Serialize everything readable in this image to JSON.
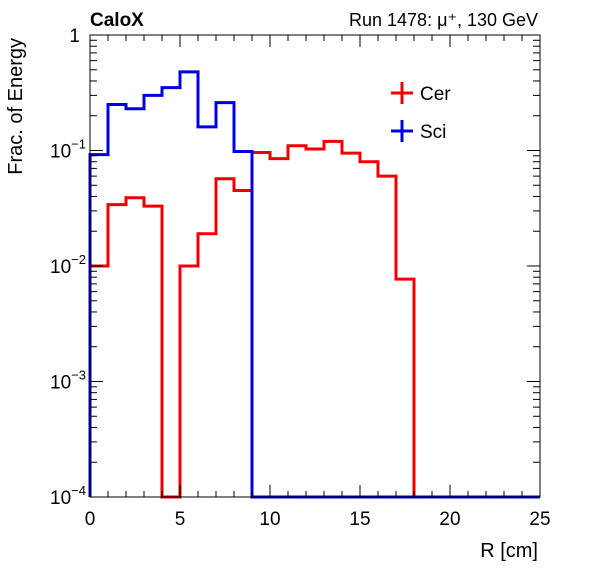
{
  "chart_data": {
    "type": "line",
    "experiment_label": "CaloX",
    "run_label": "Run 1478:   μ⁺, 130 GeV",
    "xlabel": "R [cm]",
    "ylabel": "Frac. of Energy",
    "xlim": [
      0,
      25
    ],
    "ylim": [
      0.0001,
      1
    ],
    "y_scale": "log",
    "x_ticks": [
      0,
      5,
      10,
      15,
      20,
      25
    ],
    "x_tick_labels": [
      "0",
      "5",
      "10",
      "15",
      "20",
      "25"
    ],
    "y_tick_labels": [
      {
        "value": 1,
        "base": "1",
        "exp": ""
      },
      {
        "value": 0.1,
        "base": "10",
        "exp": "−1"
      },
      {
        "value": 0.01,
        "base": "10",
        "exp": "−2"
      },
      {
        "value": 0.001,
        "base": "10",
        "exp": "−3"
      },
      {
        "value": 0.0001,
        "base": "10",
        "exp": "−4"
      }
    ],
    "grid": false,
    "legend_placement": "top-right",
    "bin_edges": [
      0,
      1,
      2,
      3,
      4,
      5,
      6,
      7,
      8,
      9,
      10,
      11,
      12,
      13,
      14,
      15,
      16,
      17,
      18,
      19,
      20,
      21,
      22,
      23,
      24,
      25
    ],
    "series": [
      {
        "name": "Cer",
        "color": "#ee0000",
        "values": [
          0.01,
          0.034,
          0.039,
          0.033,
          0.0001,
          0.01,
          0.019,
          0.057,
          0.045,
          0.096,
          0.085,
          0.11,
          0.103,
          0.12,
          0.095,
          0.08,
          0.06,
          0.0077,
          0.0001,
          0.0001,
          0.0001,
          0.0001,
          0.0001,
          0.0001,
          0.0001
        ]
      },
      {
        "name": "Sci",
        "color": "#0000dd",
        "values": [
          0.092,
          0.25,
          0.23,
          0.3,
          0.35,
          0.48,
          0.16,
          0.26,
          0.098,
          0.0001,
          0.0001,
          0.0001,
          0.0001,
          0.0001,
          0.0001,
          0.0001,
          0.0001,
          0.0001,
          0.0001,
          0.0001,
          0.0001,
          0.0001,
          0.0001,
          0.0001,
          0.0001
        ]
      }
    ]
  }
}
